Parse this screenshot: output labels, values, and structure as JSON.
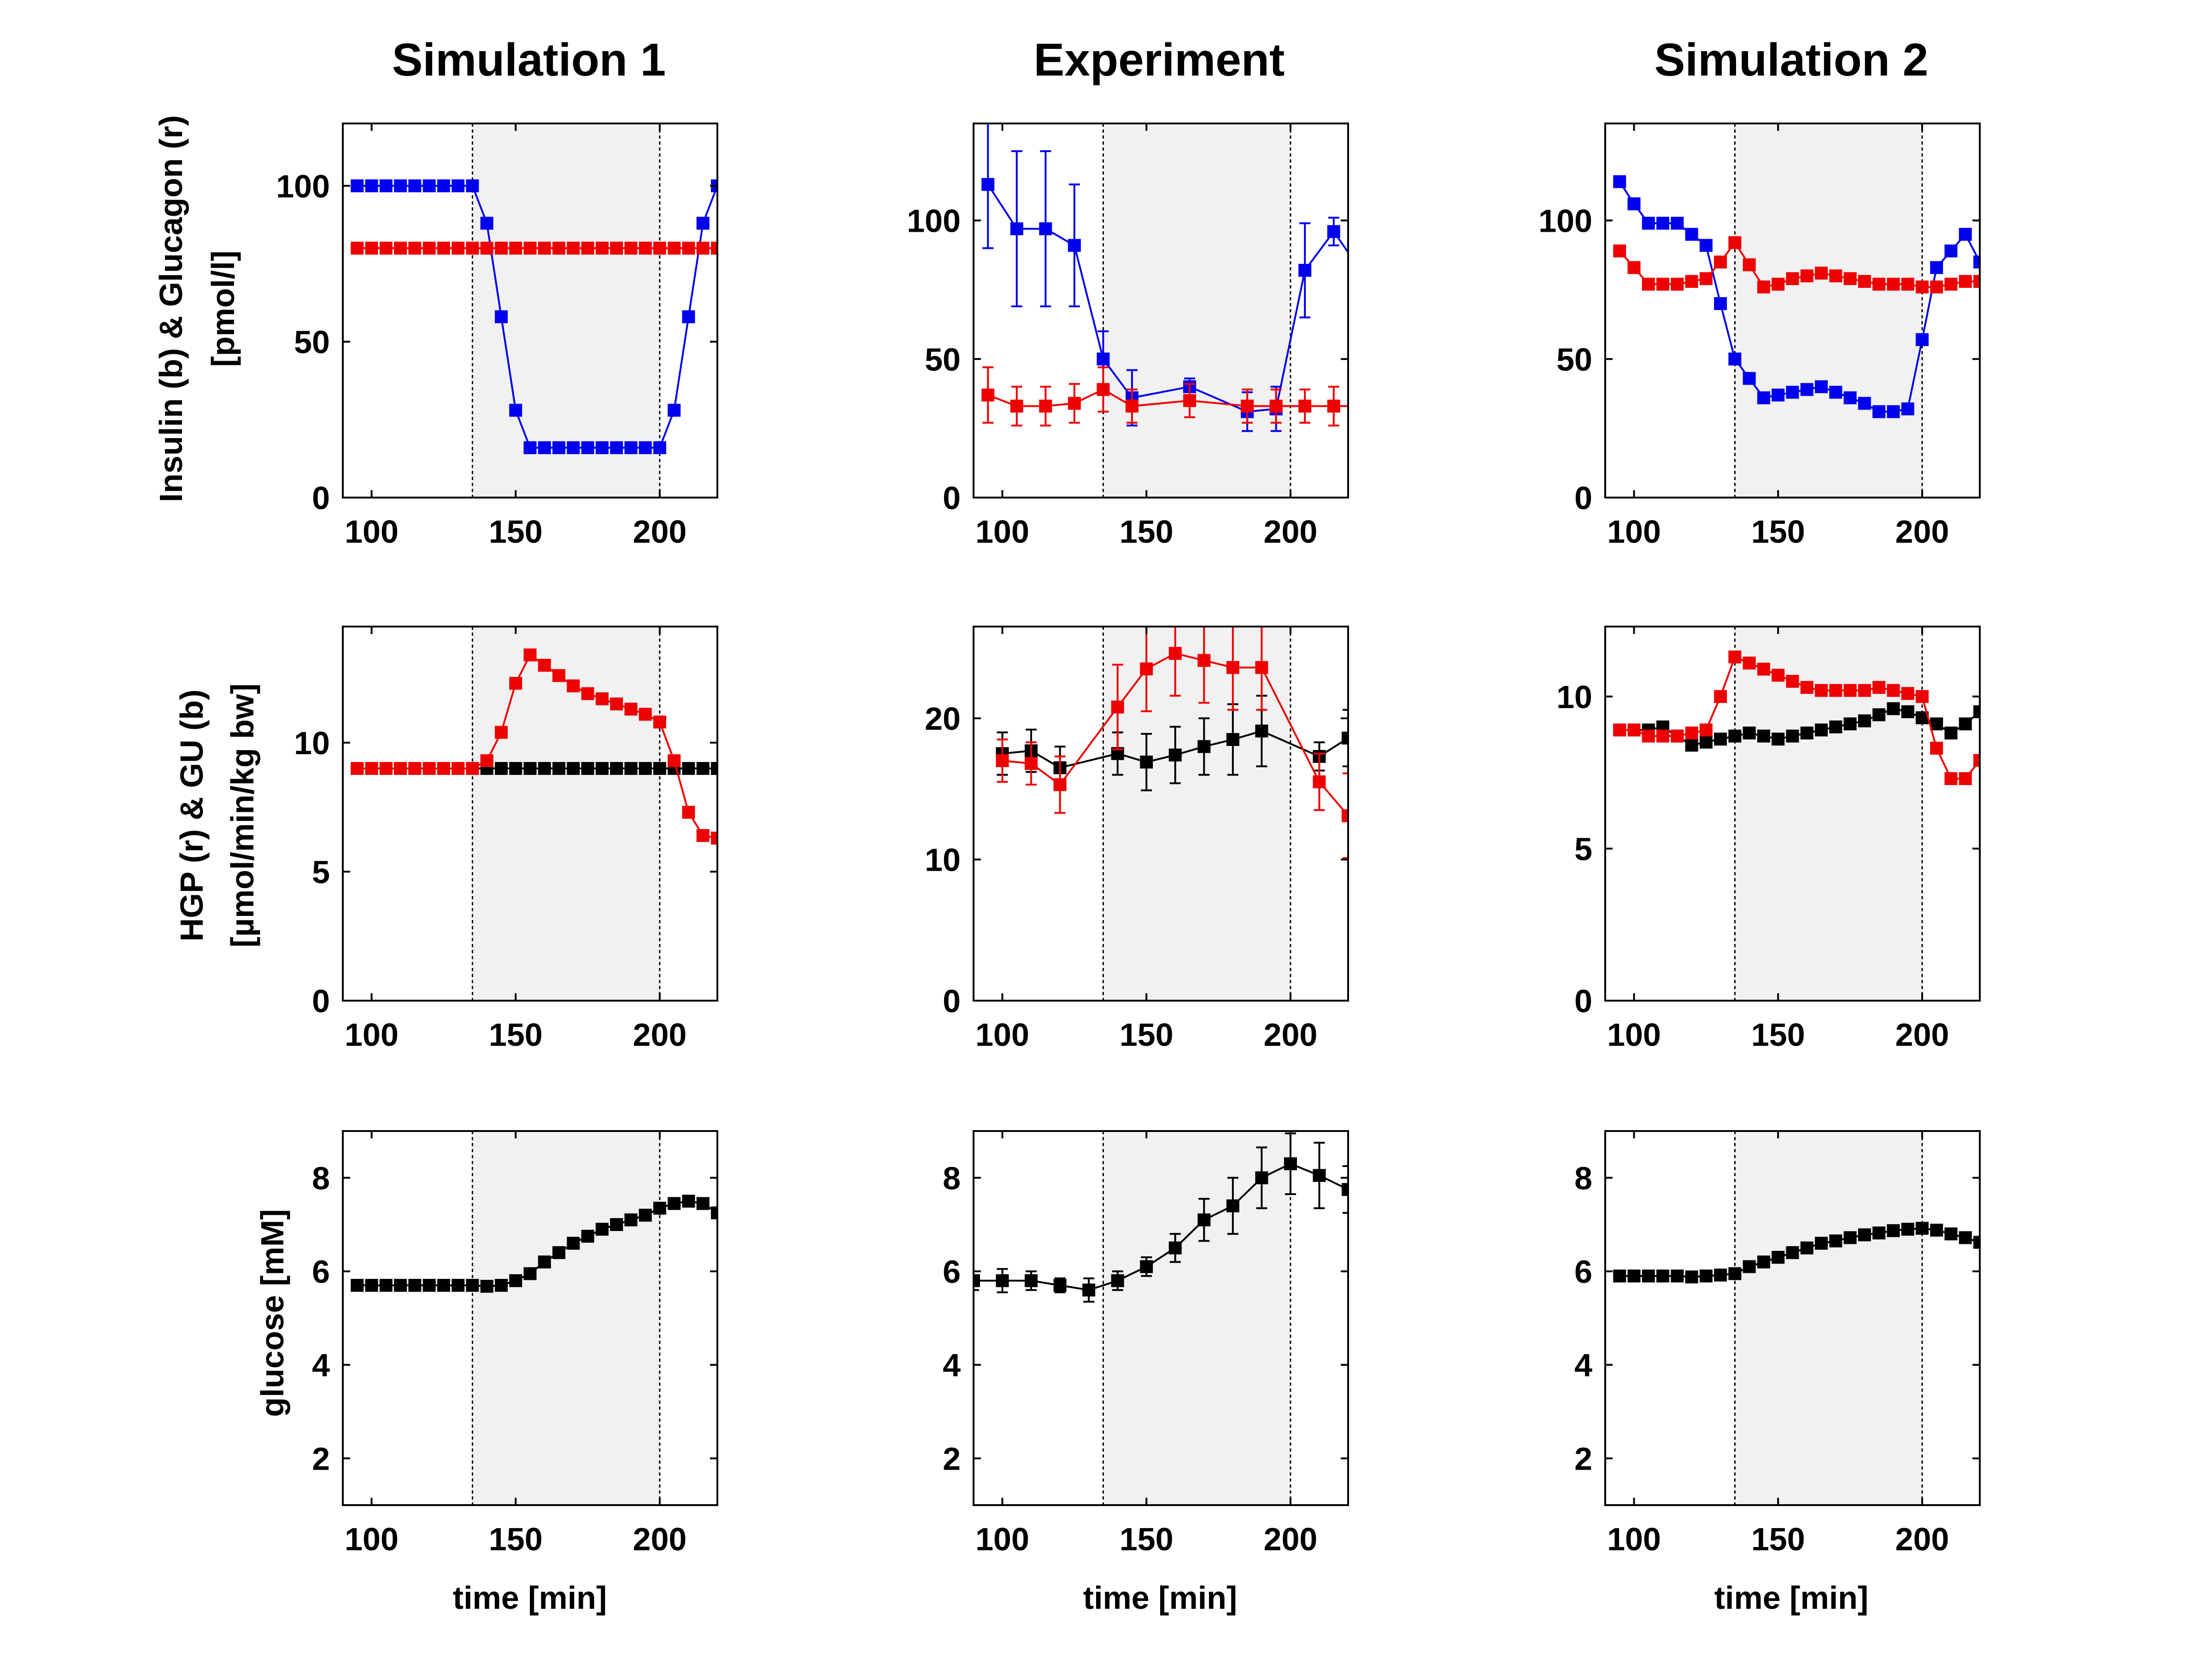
{
  "figure": {
    "columns": [
      "Simulation 1",
      "Experiment",
      "Simulation 2"
    ],
    "xlabel": "time [min]",
    "row_ylabels": [
      [
        "Insulin (b) & Glucagon (r)",
        "[pmol/l]"
      ],
      [
        "HGP (r) & GU (b)",
        "[µmol/min/kg bw]"
      ],
      [
        "glucose [mM]"
      ]
    ],
    "shaded_interval": [
      135,
      200
    ],
    "colors": {
      "blue": "#0000ee",
      "red": "#ee0000",
      "black": "#000000",
      "shade": "#f1f1f1"
    }
  },
  "chart_data": [
    {
      "type": "line",
      "column": 0,
      "row": 0,
      "xlim": [
        90,
        220
      ],
      "ylim": [
        0,
        120
      ],
      "yticks": [
        0,
        50,
        100
      ],
      "xticks": [
        100,
        150,
        200
      ],
      "series": [
        {
          "color": "blue",
          "x": [
            95,
            100,
            105,
            110,
            115,
            120,
            125,
            130,
            135,
            140,
            145,
            150,
            155,
            160,
            165,
            170,
            175,
            180,
            185,
            190,
            195,
            200,
            205,
            210,
            215,
            220
          ],
          "y": [
            100,
            100,
            100,
            100,
            100,
            100,
            100,
            100,
            100,
            88,
            58,
            28,
            16,
            16,
            16,
            16,
            16,
            16,
            16,
            16,
            16,
            16,
            28,
            58,
            88,
            100
          ]
        },
        {
          "color": "red",
          "x": [
            95,
            100,
            105,
            110,
            115,
            120,
            125,
            130,
            135,
            140,
            145,
            150,
            155,
            160,
            165,
            170,
            175,
            180,
            185,
            190,
            195,
            200,
            205,
            210,
            215,
            220
          ],
          "y": [
            80,
            80,
            80,
            80,
            80,
            80,
            80,
            80,
            80,
            80,
            80,
            80,
            80,
            80,
            80,
            80,
            80,
            80,
            80,
            80,
            80,
            80,
            80,
            80,
            80,
            80
          ]
        }
      ]
    },
    {
      "type": "line",
      "column": 1,
      "row": 0,
      "xlim": [
        90,
        220
      ],
      "ylim": [
        0,
        135
      ],
      "yticks": [
        0,
        50,
        100
      ],
      "xticks": [
        100,
        150,
        200
      ],
      "series": [
        {
          "color": "blue",
          "x": [
            95,
            105,
            115,
            125,
            135,
            145,
            165,
            185,
            195,
            205,
            215,
            225
          ],
          "y": [
            113,
            97,
            97,
            91,
            50,
            36,
            40,
            31,
            32,
            82,
            96,
            81
          ],
          "err": [
            23,
            28,
            28,
            22,
            10,
            10,
            3,
            7,
            8,
            17,
            5,
            3
          ]
        },
        {
          "color": "red",
          "x": [
            95,
            105,
            115,
            125,
            135,
            145,
            165,
            185,
            195,
            205,
            215,
            225
          ],
          "y": [
            37,
            33,
            33,
            34,
            39,
            33,
            35,
            33,
            33,
            33,
            33,
            33
          ],
          "err": [
            10,
            7,
            7,
            7,
            8,
            6,
            6,
            6,
            6,
            6,
            7,
            6
          ]
        }
      ]
    },
    {
      "type": "line",
      "column": 2,
      "row": 0,
      "xlim": [
        90,
        220
      ],
      "ylim": [
        0,
        135
      ],
      "yticks": [
        0,
        50,
        100
      ],
      "xticks": [
        100,
        150,
        200
      ],
      "series": [
        {
          "color": "blue",
          "x": [
            95,
            100,
            105,
            110,
            115,
            120,
            125,
            130,
            135,
            140,
            145,
            150,
            155,
            160,
            165,
            170,
            175,
            180,
            185,
            190,
            195,
            200,
            205,
            210,
            215,
            220
          ],
          "y": [
            114,
            106,
            99,
            99,
            99,
            95,
            91,
            70,
            50,
            43,
            36,
            37,
            38,
            39,
            40,
            38,
            36,
            34,
            31,
            31,
            32,
            57,
            83,
            89,
            95,
            85
          ]
        },
        {
          "color": "red",
          "x": [
            95,
            100,
            105,
            110,
            115,
            120,
            125,
            130,
            135,
            140,
            145,
            150,
            155,
            160,
            165,
            170,
            175,
            180,
            185,
            190,
            195,
            200,
            205,
            210,
            215,
            220
          ],
          "y": [
            89,
            83,
            77,
            77,
            77,
            78,
            79,
            85,
            92,
            84,
            76,
            77,
            79,
            80,
            81,
            80,
            79,
            78,
            77,
            77,
            77,
            76,
            76,
            77,
            78,
            78
          ]
        }
      ]
    },
    {
      "type": "line",
      "column": 0,
      "row": 1,
      "xlim": [
        90,
        220
      ],
      "ylim": [
        0,
        14.5
      ],
      "yticks": [
        0,
        5,
        10
      ],
      "xticks": [
        100,
        150,
        200
      ],
      "series": [
        {
          "color": "black",
          "x": [
            95,
            100,
            105,
            110,
            115,
            120,
            125,
            130,
            135,
            140,
            145,
            150,
            155,
            160,
            165,
            170,
            175,
            180,
            185,
            190,
            195,
            200,
            205,
            210,
            215,
            220
          ],
          "y": [
            9,
            9,
            9,
            9,
            9,
            9,
            9,
            9,
            9,
            9,
            9,
            9,
            9,
            9,
            9,
            9,
            9,
            9,
            9,
            9,
            9,
            9,
            9,
            9,
            9,
            9
          ]
        },
        {
          "color": "red",
          "x": [
            95,
            100,
            105,
            110,
            115,
            120,
            125,
            130,
            135,
            140,
            145,
            150,
            155,
            160,
            165,
            170,
            175,
            180,
            185,
            190,
            195,
            200,
            205,
            210,
            215,
            220
          ],
          "y": [
            9,
            9,
            9,
            9,
            9,
            9,
            9,
            9,
            9,
            9.3,
            10.4,
            12.3,
            13.4,
            13,
            12.6,
            12.2,
            11.9,
            11.7,
            11.5,
            11.3,
            11.1,
            10.8,
            9.3,
            7.3,
            6.4,
            6.3
          ]
        }
      ]
    },
    {
      "type": "line",
      "column": 1,
      "row": 1,
      "xlim": [
        90,
        220
      ],
      "ylim": [
        0,
        26.5
      ],
      "yticks": [
        0,
        10,
        20
      ],
      "xticks": [
        100,
        150,
        200
      ],
      "series": [
        {
          "color": "black",
          "x": [
            100,
            110,
            120,
            140,
            150,
            160,
            170,
            180,
            190,
            210,
            220
          ],
          "y": [
            17.5,
            17.7,
            16.5,
            17.5,
            16.9,
            17.4,
            18,
            18.5,
            19.1,
            17.3,
            18.6
          ],
          "err": [
            1.5,
            1.5,
            1.5,
            1.5,
            2,
            2,
            2,
            2.5,
            2.5,
            1,
            2
          ]
        },
        {
          "color": "red",
          "x": [
            100,
            110,
            120,
            140,
            150,
            160,
            170,
            180,
            190,
            210,
            220
          ],
          "y": [
            17,
            16.8,
            15.3,
            20.8,
            23.5,
            24.6,
            24.1,
            23.6,
            23.6,
            15.5,
            13.1
          ],
          "err": [
            1.5,
            1.5,
            2,
            3,
            3,
            3,
            3,
            3,
            3,
            2,
            3
          ]
        }
      ]
    },
    {
      "type": "line",
      "column": 2,
      "row": 1,
      "xlim": [
        90,
        220
      ],
      "ylim": [
        0,
        12.3
      ],
      "yticks": [
        0,
        5,
        10
      ],
      "xticks": [
        100,
        150,
        200
      ],
      "series": [
        {
          "color": "black",
          "x": [
            95,
            100,
            105,
            110,
            115,
            120,
            125,
            130,
            135,
            140,
            145,
            150,
            155,
            160,
            165,
            170,
            175,
            180,
            185,
            190,
            195,
            200,
            205,
            210,
            215,
            220
          ],
          "y": [
            8.9,
            8.9,
            8.9,
            9,
            8.7,
            8.4,
            8.5,
            8.6,
            8.7,
            8.8,
            8.7,
            8.6,
            8.7,
            8.8,
            8.9,
            9,
            9.1,
            9.2,
            9.4,
            9.6,
            9.5,
            9.3,
            9.1,
            8.8,
            9.1,
            9.5
          ]
        },
        {
          "color": "red",
          "x": [
            95,
            100,
            105,
            110,
            115,
            120,
            125,
            130,
            135,
            140,
            145,
            150,
            155,
            160,
            165,
            170,
            175,
            180,
            185,
            190,
            195,
            200,
            205,
            210,
            215,
            220
          ],
          "y": [
            8.9,
            8.9,
            8.7,
            8.7,
            8.7,
            8.8,
            8.9,
            10,
            11.3,
            11.1,
            10.9,
            10.7,
            10.5,
            10.3,
            10.2,
            10.2,
            10.2,
            10.2,
            10.3,
            10.2,
            10.1,
            10,
            8.3,
            7.3,
            7.3,
            7.9
          ]
        }
      ]
    },
    {
      "type": "line",
      "column": 0,
      "row": 2,
      "xlim": [
        90,
        220
      ],
      "ylim": [
        1,
        9
      ],
      "yticks": [
        2,
        4,
        6,
        8
      ],
      "xticks": [
        100,
        150,
        200
      ],
      "series": [
        {
          "color": "black",
          "x": [
            95,
            100,
            105,
            110,
            115,
            120,
            125,
            130,
            135,
            140,
            145,
            150,
            155,
            160,
            165,
            170,
            175,
            180,
            185,
            190,
            195,
            200,
            205,
            210,
            215,
            220
          ],
          "y": [
            5.7,
            5.7,
            5.7,
            5.7,
            5.7,
            5.7,
            5.7,
            5.7,
            5.7,
            5.68,
            5.7,
            5.8,
            5.95,
            6.2,
            6.4,
            6.6,
            6.75,
            6.9,
            7.0,
            7.1,
            7.2,
            7.35,
            7.45,
            7.5,
            7.45,
            7.25
          ]
        }
      ]
    },
    {
      "type": "line",
      "column": 1,
      "row": 2,
      "xlim": [
        90,
        220
      ],
      "ylim": [
        1,
        9
      ],
      "yticks": [
        2,
        4,
        6,
        8
      ],
      "xticks": [
        100,
        150,
        200
      ],
      "series": [
        {
          "color": "black",
          "x": [
            90,
            100,
            110,
            120,
            130,
            140,
            150,
            160,
            170,
            180,
            190,
            200,
            210,
            220
          ],
          "y": [
            5.8,
            5.8,
            5.8,
            5.7,
            5.6,
            5.8,
            6.1,
            6.5,
            7.1,
            7.4,
            8.0,
            8.3,
            8.05,
            7.75
          ],
          "err": [
            0.2,
            0.25,
            0.2,
            0.15,
            0.25,
            0.2,
            0.2,
            0.3,
            0.45,
            0.6,
            0.65,
            0.65,
            0.7,
            0.5
          ]
        }
      ]
    },
    {
      "type": "line",
      "column": 2,
      "row": 2,
      "xlim": [
        90,
        220
      ],
      "ylim": [
        1,
        9
      ],
      "yticks": [
        2,
        4,
        6,
        8
      ],
      "xticks": [
        100,
        150,
        200
      ],
      "series": [
        {
          "color": "black",
          "x": [
            95,
            100,
            105,
            110,
            115,
            120,
            125,
            130,
            135,
            140,
            145,
            150,
            155,
            160,
            165,
            170,
            175,
            180,
            185,
            190,
            195,
            200,
            205,
            210,
            215,
            220
          ],
          "y": [
            5.9,
            5.9,
            5.9,
            5.9,
            5.9,
            5.88,
            5.9,
            5.92,
            5.95,
            6.1,
            6.2,
            6.3,
            6.4,
            6.5,
            6.6,
            6.65,
            6.72,
            6.78,
            6.82,
            6.87,
            6.9,
            6.92,
            6.88,
            6.8,
            6.72,
            6.62
          ]
        }
      ]
    }
  ]
}
